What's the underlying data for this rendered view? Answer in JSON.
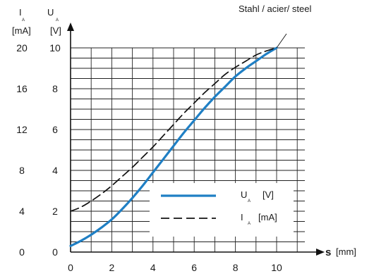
{
  "chart_data": {
    "type": "line",
    "title": "Stahl / acier/ steel",
    "xlabel": {
      "main": "s",
      "unit": "[mm]"
    },
    "ylabel_left": {
      "main": "I",
      "sub": "A",
      "unit": "[mA]"
    },
    "ylabel_right": {
      "main": "U",
      "sub": "A",
      "unit": "[V]"
    },
    "xlim": [
      0,
      10
    ],
    "ylim": [
      0,
      10
    ],
    "x_ticks": [
      "0",
      "2",
      "4",
      "6",
      "8",
      "10"
    ],
    "y_ticks_current": [
      "0",
      "4",
      "8",
      "12",
      "16",
      "20"
    ],
    "y_ticks_voltage": [
      "0",
      "2",
      "4",
      "6",
      "8",
      "10"
    ],
    "grid": true,
    "legend_position": "bottom-right",
    "series": [
      {
        "name": "U",
        "sub": "A",
        "unit": "[V]",
        "style": "solid",
        "color": "#1f7fc4",
        "x": [
          0,
          0.5,
          1,
          1.5,
          2,
          2.5,
          3,
          3.5,
          4,
          4.5,
          5,
          5.5,
          6,
          6.5,
          7,
          7.5,
          8,
          8.5,
          9,
          9.5,
          10
        ],
        "y": [
          0.3,
          0.55,
          0.85,
          1.2,
          1.6,
          2.1,
          2.65,
          3.25,
          3.9,
          4.55,
          5.2,
          5.85,
          6.45,
          7.05,
          7.6,
          8.1,
          8.6,
          9.0,
          9.35,
          9.7,
          10.0
        ]
      },
      {
        "name": "I",
        "sub": "A",
        "unit": "[mA]",
        "style": "dashed",
        "color": "#111111",
        "x": [
          0,
          0.5,
          1,
          1.5,
          2,
          2.5,
          3,
          3.5,
          4,
          4.5,
          5,
          5.5,
          6,
          6.5,
          7,
          7.5,
          8,
          8.5,
          9,
          9.5,
          10
        ],
        "y": [
          2.0,
          2.2,
          2.5,
          2.85,
          3.25,
          3.7,
          4.15,
          4.65,
          5.15,
          5.7,
          6.25,
          6.8,
          7.3,
          7.8,
          8.25,
          8.7,
          9.05,
          9.35,
          9.65,
          9.85,
          10.0
        ]
      }
    ]
  }
}
